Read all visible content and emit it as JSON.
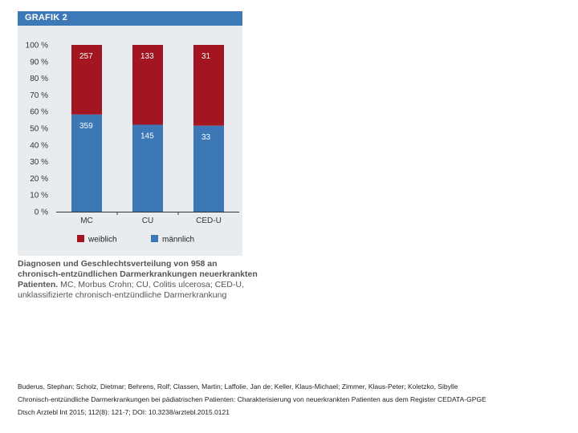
{
  "figure": {
    "header": "GRAFIK 2"
  },
  "chart_data": {
    "type": "bar",
    "stacked": true,
    "normalized": true,
    "categories": [
      "MC",
      "CU",
      "CED-U"
    ],
    "series": [
      {
        "name": "männlich",
        "color": "#3c77b6",
        "values": [
          359,
          145,
          33
        ]
      },
      {
        "name": "weiblich",
        "color": "#a31521",
        "values": [
          257,
          133,
          31
        ]
      }
    ],
    "ylim": [
      0,
      100
    ],
    "yticks": [
      "0 %",
      "10 %",
      "20 %",
      "30 %",
      "40 %",
      "50 %",
      "60 %",
      "70 %",
      "80 %",
      "90 %",
      "100 %"
    ],
    "legend": {
      "position": "bottom",
      "order": [
        "weiblich",
        "männlich"
      ]
    },
    "grid": false
  },
  "caption": {
    "bold": "Diagnosen und Geschlechtsverteilung von 958 an chronisch-entzündlichen Darmerkrankungen neuerkrankten Patienten.",
    "normal": "MC, Morbus Crohn; CU, Colitis ulcerosa; CED-U, unklassifizierte chronisch-entzündliche Darmerkrankung"
  },
  "citation": {
    "authors": "Buderus, Stephan; Scholz, Dietmar; Behrens, Rolf; Classen, Martin; Laffolie, Jan de; Keller, Klaus-Michael; Zimmer, Klaus-Peter; Koletzko, Sibylle",
    "title": "Chronisch-entzündliche Darmerkrankungen bei pädiatrischen Patienten: Charakterisierung von neuerkrankten Patienten aus dem Register CEDATA-GPGE",
    "source": "Dtsch Arztebl Int 2015; 112(8): 121-7; DOI: 10.3238/arztebl.2015.0121"
  }
}
